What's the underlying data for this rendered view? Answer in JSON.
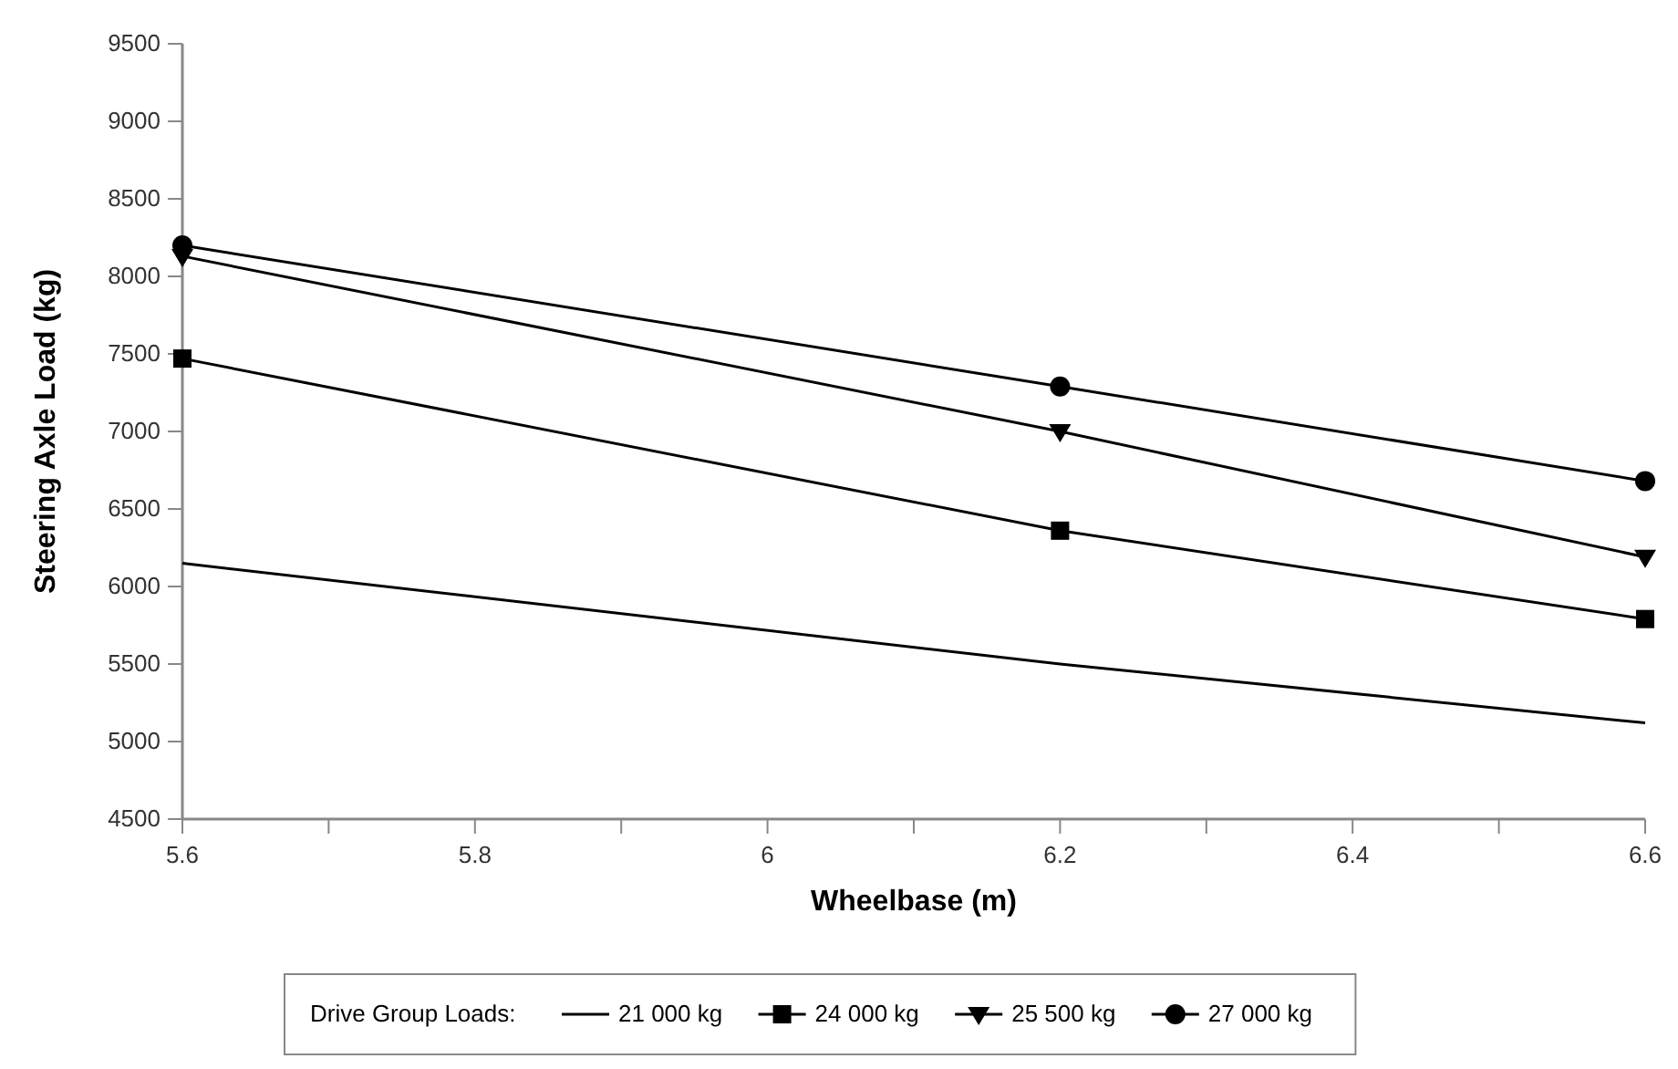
{
  "chart_data": {
    "type": "line",
    "xlabel": "Wheelbase (m)",
    "ylabel": "Steering Axle Load (kg)",
    "legend_title": "Drive Group Loads:",
    "legend": "bottom",
    "grid": false,
    "xlim": [
      5.6,
      6.6
    ],
    "xticks": [
      {
        "value": 5.6,
        "label": "5.6"
      },
      {
        "value": 5.7,
        "label": null
      },
      {
        "value": 5.8,
        "label": "5.8"
      },
      {
        "value": 5.9,
        "label": null
      },
      {
        "value": 6,
        "label": "6"
      },
      {
        "value": 6.1,
        "label": null
      },
      {
        "value": 6.2,
        "label": "6.2"
      },
      {
        "value": 6.3,
        "label": null
      },
      {
        "value": 6.4,
        "label": "6.4"
      },
      {
        "value": 6.5,
        "label": null
      },
      {
        "value": 6.6,
        "label": "6.6"
      }
    ],
    "ylim": [
      4500,
      9500
    ],
    "yticks": [
      4500,
      5000,
      5500,
      6000,
      6500,
      7000,
      7500,
      8000,
      8500,
      9000,
      9500
    ],
    "x": [
      5.6,
      6.2,
      6.6
    ],
    "series": [
      {
        "name": "21 000 kg",
        "color": "#000000",
        "marker": "none",
        "values": [
          6150,
          5500,
          5120
        ]
      },
      {
        "name": "24 000 kg",
        "color": "#000000",
        "marker": "square",
        "values": [
          7470,
          6360,
          5790
        ]
      },
      {
        "name": "25 500 kg",
        "color": "#000000",
        "marker": "triangle",
        "values": [
          8130,
          7000,
          6190
        ]
      },
      {
        "name": "27 000 kg",
        "color": "#000000",
        "marker": "circle",
        "values": [
          8200,
          7290,
          6680
        ]
      }
    ]
  }
}
